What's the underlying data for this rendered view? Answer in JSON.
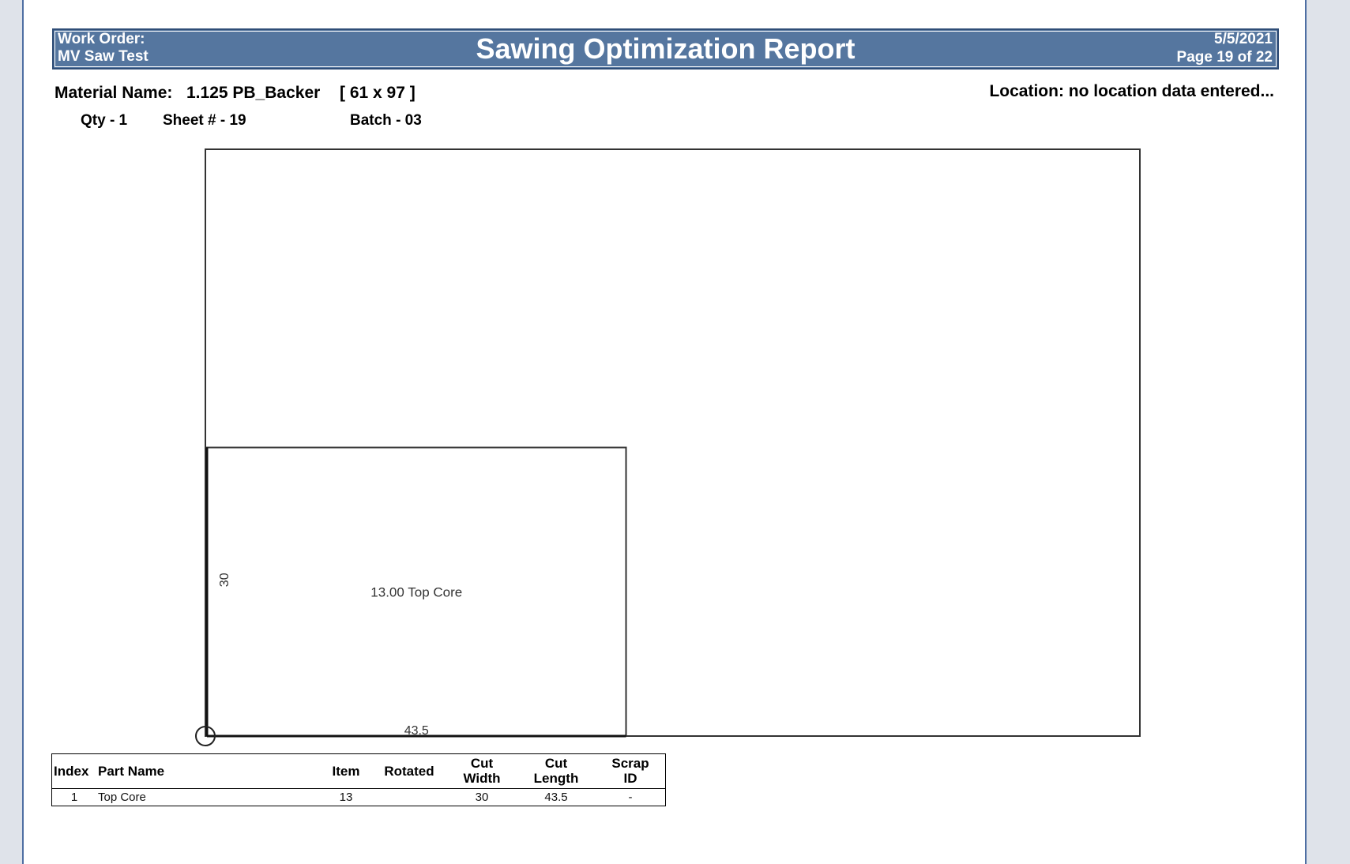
{
  "header": {
    "work_order_label": "Work Order:",
    "work_order_name": "MV Saw Test",
    "title": "Sawing Optimization Report",
    "date": "5/5/2021",
    "page": "Page 19 of 22",
    "bar_color": "#55769f"
  },
  "material": {
    "label": "Material Name:",
    "name": "1.125 PB_Backer",
    "dimensions": "[ 61 x 97 ]",
    "location": "Location: no location data entered..."
  },
  "sheet_info": {
    "qty": "Qty - 1",
    "sheet": "Sheet # - 19",
    "batch": "Batch - 03"
  },
  "layout": {
    "sheet_width": 97,
    "sheet_length": 61,
    "parts": [
      {
        "label": "13.00 Top Core",
        "width": 43.5,
        "length": 30,
        "width_label": "43.5",
        "length_label": "30"
      }
    ]
  },
  "table": {
    "headers": {
      "index": "Index",
      "part_name": "Part Name",
      "item": "Item",
      "rotated": "Rotated",
      "cut_width_1": "Cut",
      "cut_width_2": "Width",
      "cut_length_1": "Cut",
      "cut_length_2": "Length",
      "scrap_1": "Scrap",
      "scrap_2": "ID"
    },
    "rows": [
      {
        "index": "1",
        "part_name": "Top Core",
        "item": "13",
        "rotated": "",
        "cut_width": "30",
        "cut_length": "43.5",
        "scrap_id": "-"
      }
    ]
  }
}
